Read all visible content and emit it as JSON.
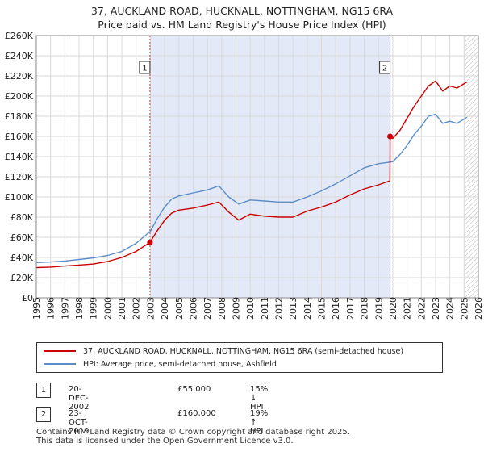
{
  "title_line1": "37, AUCKLAND ROAD, HUCKNALL, NOTTINGHAM, NG15 6RA",
  "title_line2": "Price paid vs. HM Land Registry's House Price Index (HPI)",
  "colors": {
    "property": "#cc0000",
    "hpi": "#5b8ec9",
    "shade": "#e3e9f7",
    "marker_line": "#cc3333"
  },
  "chart_data": {
    "type": "line",
    "title": "Price paid vs. HM Land Registry's House Price Index (HPI)",
    "xlabel": "",
    "ylabel": "",
    "xlim": [
      1995,
      2026
    ],
    "ylim": [
      0,
      260000
    ],
    "y_ticks": [
      0,
      20000,
      40000,
      60000,
      80000,
      100000,
      120000,
      140000,
      160000,
      180000,
      200000,
      220000,
      240000,
      260000
    ],
    "y_tick_labels": [
      "£0",
      "£20K",
      "£40K",
      "£60K",
      "£80K",
      "£100K",
      "£120K",
      "£140K",
      "£160K",
      "£180K",
      "£200K",
      "£220K",
      "£240K",
      "£260K"
    ],
    "x_ticks": [
      1995,
      1996,
      1997,
      1998,
      1999,
      2000,
      2001,
      2002,
      2003,
      2004,
      2005,
      2006,
      2007,
      2008,
      2009,
      2010,
      2011,
      2012,
      2013,
      2014,
      2015,
      2016,
      2017,
      2018,
      2019,
      2020,
      2021,
      2022,
      2023,
      2024,
      2025,
      2026
    ],
    "grid": true,
    "shaded_range": [
      2002.97,
      2019.81
    ],
    "hatched_from": 2025.0,
    "series": [
      {
        "name": "37, AUCKLAND ROAD, HUCKNALL, NOTTINGHAM, NG15 6RA (semi-detached house)",
        "x": [
          1995,
          1996,
          1997,
          1998,
          1999,
          2000,
          2001,
          2002,
          2002.97,
          2003.5,
          2004,
          2004.5,
          2005,
          2006,
          2007,
          2007.8,
          2008.5,
          2009.2,
          2010,
          2011,
          2012,
          2013,
          2014,
          2015,
          2016,
          2017,
          2018,
          2019,
          2019.8,
          2019.81,
          2020,
          2020.5,
          2021,
          2021.5,
          2022,
          2022.5,
          2023,
          2023.5,
          2024,
          2024.5,
          2025.2
        ],
        "values": [
          30000,
          30500,
          31500,
          32500,
          33500,
          36000,
          40000,
          46000,
          55000,
          67000,
          77000,
          84000,
          87000,
          89000,
          92000,
          95000,
          85000,
          77000,
          83000,
          81000,
          80000,
          80000,
          86000,
          90000,
          95000,
          102000,
          108000,
          112000,
          116000,
          160000,
          158000,
          166000,
          178000,
          190000,
          200000,
          210000,
          215000,
          205000,
          210000,
          208000,
          214000
        ]
      },
      {
        "name": "HPI: Average price, semi-detached house, Ashfield",
        "x": [
          1995,
          1996,
          1997,
          1998,
          1999,
          2000,
          2001,
          2002,
          2003,
          2003.5,
          2004,
          2004.5,
          2005,
          2006,
          2007,
          2007.8,
          2008.5,
          2009.2,
          2010,
          2011,
          2012,
          2013,
          2014,
          2015,
          2016,
          2017,
          2018,
          2019,
          2020,
          2020.5,
          2021,
          2021.5,
          2022,
          2022.5,
          2023,
          2023.5,
          2024,
          2024.5,
          2025.2
        ],
        "values": [
          35000,
          35500,
          36500,
          38000,
          39500,
          42000,
          46000,
          54000,
          66000,
          79000,
          90000,
          98000,
          101000,
          104000,
          107000,
          111000,
          100000,
          93000,
          97000,
          96000,
          95000,
          95000,
          100000,
          106000,
          113000,
          121000,
          129000,
          133000,
          135000,
          142000,
          151000,
          162000,
          170000,
          180000,
          182000,
          173000,
          175000,
          173000,
          179000
        ]
      }
    ],
    "sales": [
      {
        "id": "1",
        "x": 2002.97,
        "value": 55000
      },
      {
        "id": "2",
        "x": 2019.81,
        "value": 160000
      }
    ]
  },
  "legend": {
    "property_label": "37, AUCKLAND ROAD, HUCKNALL, NOTTINGHAM, NG15 6RA (semi-detached house)",
    "hpi_label": "HPI: Average price, semi-detached house, Ashfield"
  },
  "transactions": [
    {
      "id": "1",
      "date": "20-DEC-2002",
      "price": "£55,000",
      "hpi": "15% ↓ HPI"
    },
    {
      "id": "2",
      "date": "23-OCT-2019",
      "price": "£160,000",
      "hpi": "19% ↑ HPI"
    }
  ],
  "footer": {
    "line1": "Contains HM Land Registry data © Crown copyright and database right 2025.",
    "line2": "This data is licensed under the Open Government Licence v3.0."
  }
}
